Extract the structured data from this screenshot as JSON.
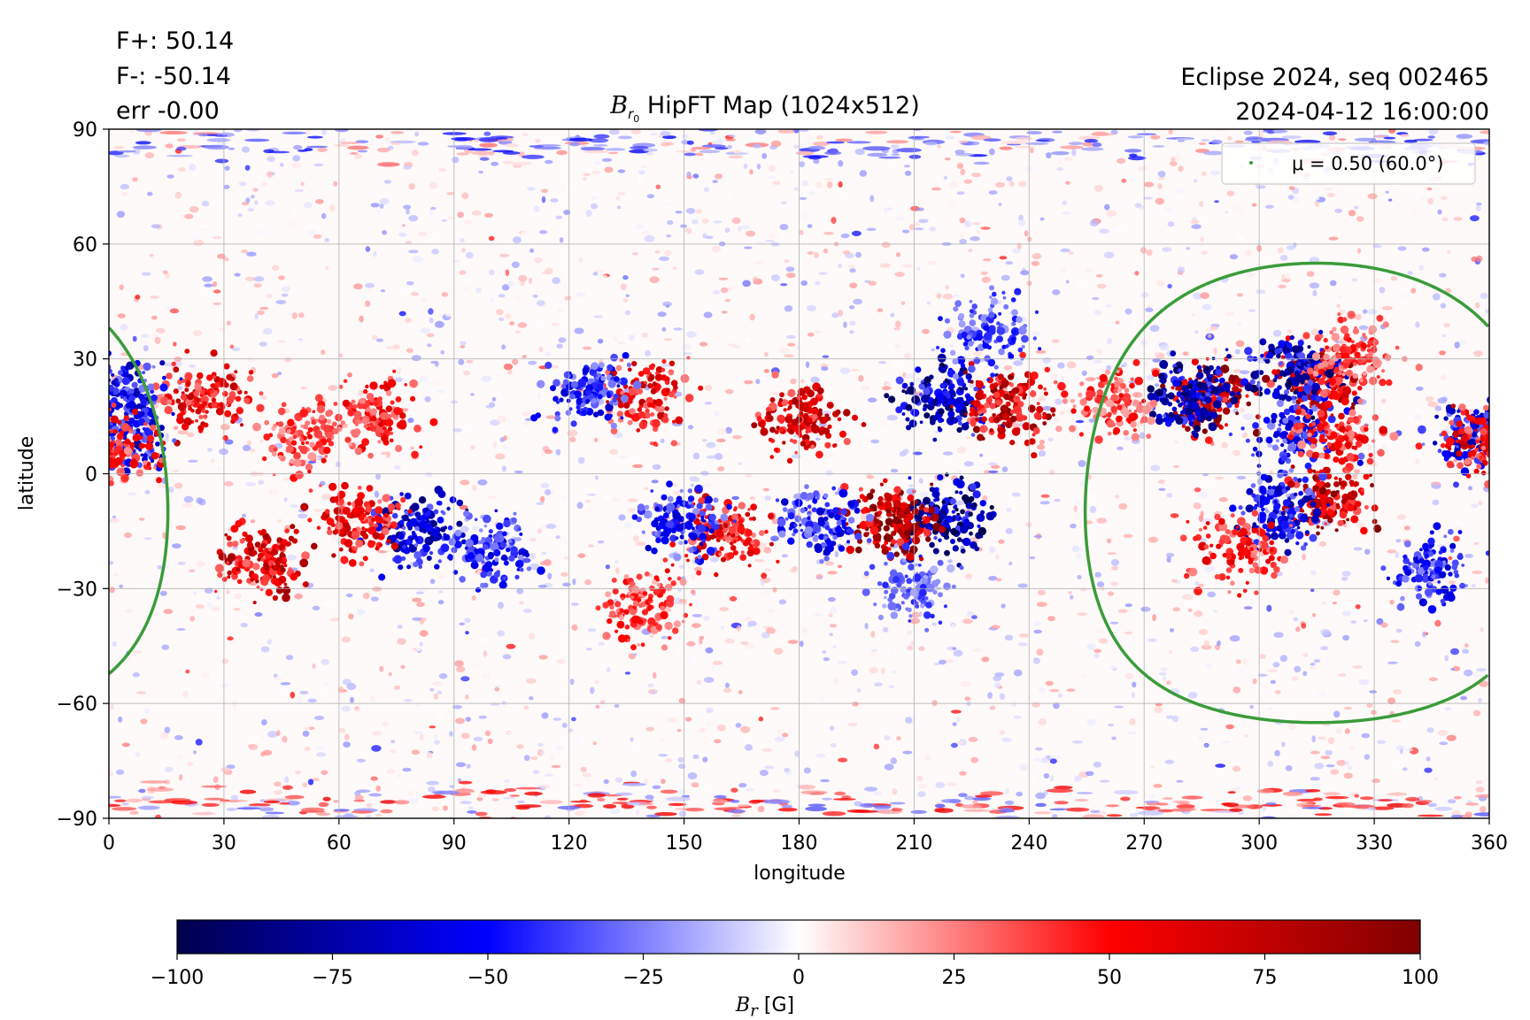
{
  "header": {
    "stats": [
      "F+: 50.14",
      "F-: -50.14",
      "err -0.00"
    ],
    "right_lines": [
      "Eclipse 2024, seq 002465",
      "2024-04-12 16:00:00"
    ]
  },
  "chart_data": {
    "type": "heatmap",
    "title": {
      "symbol": "B",
      "subscript": "r",
      "sub_subscript": "0",
      "text": "HipFT Map (1024x512)"
    },
    "xlabel": "longitude",
    "ylabel": "latitude",
    "xlim": [
      0,
      360
    ],
    "ylim": [
      -90,
      90
    ],
    "xticks": [
      0,
      30,
      60,
      90,
      120,
      150,
      180,
      210,
      240,
      270,
      300,
      330,
      360
    ],
    "yticks": [
      90,
      60,
      30,
      0,
      -30,
      -60,
      -90
    ],
    "ytick_labels": [
      "90",
      "60",
      "30",
      "0",
      "−30",
      "−60",
      "−90"
    ],
    "grid": true,
    "colormap": "seismic",
    "colorbar": {
      "label_symbol": "B",
      "label_subscript": "r",
      "label_unit": "[G]",
      "range": [
        -100,
        100
      ],
      "ticks": [
        -100,
        -75,
        -50,
        -25,
        0,
        25,
        50,
        75,
        100
      ],
      "tick_labels": [
        "−100",
        "−75",
        "−50",
        "−25",
        "0",
        "25",
        "50",
        "75",
        "100"
      ]
    },
    "legend": {
      "text": "μ = 0.50 (60.0°)",
      "placement": "upper-right",
      "color": "#3a9c3a"
    },
    "contour": {
      "name": "μ = 0.50 (60.0°)",
      "center_lon": 315,
      "center_lat": -5,
      "angular_radius_deg": 60
    },
    "active_regions": [
      {
        "lon": 287,
        "lat": 20,
        "sign": 1,
        "strength": 1.0
      },
      {
        "lon": 282,
        "lat": 20,
        "sign": -1,
        "strength": 0.9
      },
      {
        "lon": 316,
        "lat": 25,
        "sign": 1,
        "strength": 0.9
      },
      {
        "lon": 310,
        "lat": 27,
        "sign": -1,
        "strength": 0.9
      },
      {
        "lon": 318,
        "lat": -7,
        "sign": 1,
        "strength": 0.9
      },
      {
        "lon": 306,
        "lat": -10,
        "sign": -1,
        "strength": 0.7
      },
      {
        "lon": 218,
        "lat": -12,
        "sign": -1,
        "strength": 1.0
      },
      {
        "lon": 204,
        "lat": -13,
        "sign": 1,
        "strength": 1.0
      },
      {
        "lon": 218,
        "lat": 20,
        "sign": -1,
        "strength": 0.9
      },
      {
        "lon": 234,
        "lat": 18,
        "sign": 1,
        "strength": 0.9
      },
      {
        "lon": 180,
        "lat": 15,
        "sign": 1,
        "strength": 0.8
      },
      {
        "lon": 80,
        "lat": -15,
        "sign": -1,
        "strength": 0.8
      },
      {
        "lon": 65,
        "lat": -13,
        "sign": 1,
        "strength": 0.7
      },
      {
        "lon": 40,
        "lat": -22,
        "sign": 1,
        "strength": 0.8
      },
      {
        "lon": 25,
        "lat": 20,
        "sign": 1,
        "strength": 0.7
      },
      {
        "lon": 4,
        "lat": 20,
        "sign": -1,
        "strength": 0.7
      },
      {
        "lon": 3,
        "lat": 9,
        "sign": -1,
        "strength": 0.7
      },
      {
        "lon": 2,
        "lat": 7,
        "sign": 1,
        "strength": 0.6
      },
      {
        "lon": 140,
        "lat": 20,
        "sign": 1,
        "strength": 0.7
      },
      {
        "lon": 125,
        "lat": 22,
        "sign": -1,
        "strength": 0.6
      },
      {
        "lon": 160,
        "lat": -15,
        "sign": 1,
        "strength": 0.7
      },
      {
        "lon": 150,
        "lat": -12,
        "sign": -1,
        "strength": 0.6
      },
      {
        "lon": 100,
        "lat": -20,
        "sign": -1,
        "strength": 0.6
      },
      {
        "lon": 185,
        "lat": -12,
        "sign": -1,
        "strength": 0.6
      },
      {
        "lon": 355,
        "lat": 10,
        "sign": -1,
        "strength": 0.7
      },
      {
        "lon": 358,
        "lat": 8,
        "sign": 1,
        "strength": 0.7
      },
      {
        "lon": 345,
        "lat": -25,
        "sign": -1,
        "strength": 0.6
      },
      {
        "lon": 296,
        "lat": -20,
        "sign": 1,
        "strength": 0.6
      },
      {
        "lon": 325,
        "lat": 30,
        "sign": 1,
        "strength": 0.5
      },
      {
        "lon": 262,
        "lat": 18,
        "sign": 1,
        "strength": 0.5
      },
      {
        "lon": 70,
        "lat": 15,
        "sign": 1,
        "strength": 0.6
      },
      {
        "lon": 140,
        "lat": -35,
        "sign": 1,
        "strength": 0.5
      },
      {
        "lon": 210,
        "lat": -30,
        "sign": -1,
        "strength": 0.4
      },
      {
        "lon": 230,
        "lat": 37,
        "sign": -1,
        "strength": 0.5
      },
      {
        "lon": 50,
        "lat": 10,
        "sign": 1,
        "strength": 0.5
      },
      {
        "lon": 310,
        "lat": 10,
        "sign": -1,
        "strength": 0.6
      },
      {
        "lon": 320,
        "lat": 10,
        "sign": 1,
        "strength": 0.6
      }
    ],
    "polar_bands": [
      {
        "lat": 86,
        "sign": -1,
        "strength": 0.5
      },
      {
        "lat": -86,
        "sign": 1,
        "strength": 0.6
      }
    ]
  }
}
